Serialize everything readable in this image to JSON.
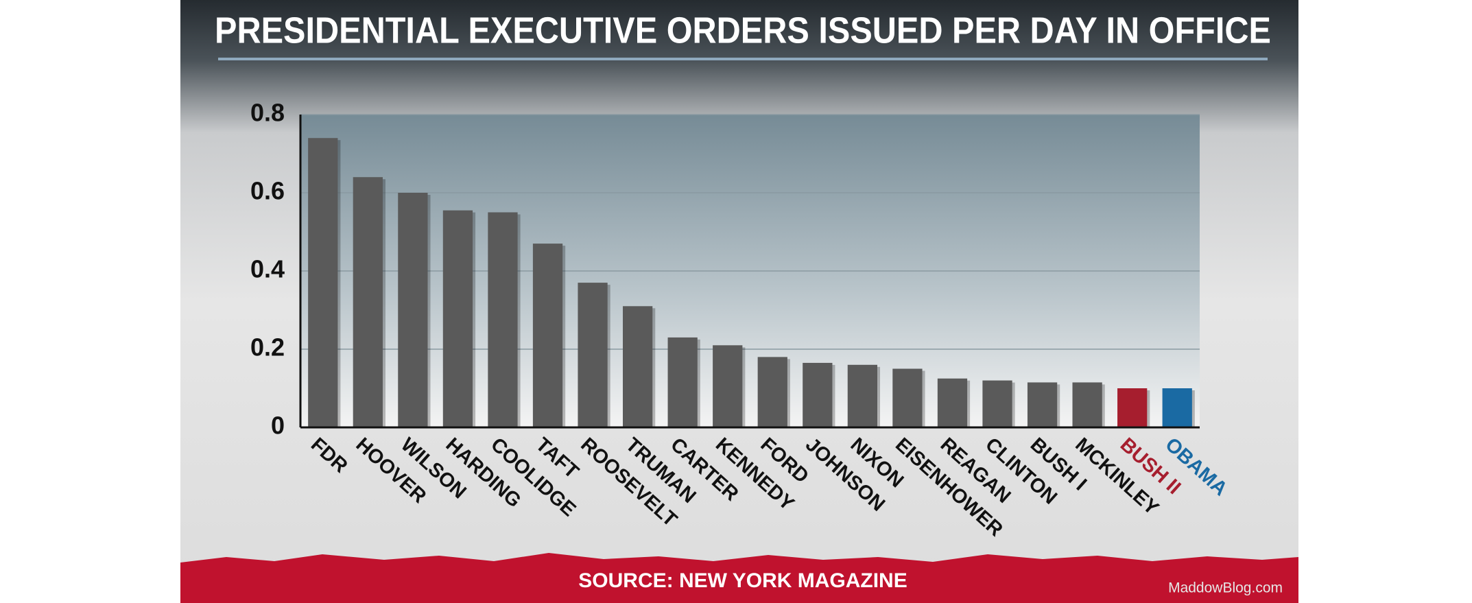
{
  "chart_data": {
    "type": "bar",
    "title": "PRESIDENTIAL EXECUTIVE ORDERS ISSUED PER DAY IN OFFICE",
    "source": "SOURCE: NEW YORK MAGAZINE",
    "watermark": "MaddowBlog.com",
    "categories": [
      "FDR",
      "HOOVER",
      "WILSON",
      "HARDING",
      "COOLIDGE",
      "TAFT",
      "ROOSEVELT",
      "TRUMAN",
      "CARTER",
      "KENNEDY",
      "FORD",
      "JOHNSON",
      "NIXON",
      "EISENHOWER",
      "REAGAN",
      "CLINTON",
      "BUSH I",
      "MCKINLEY",
      "BUSH II",
      "OBAMA"
    ],
    "values": [
      0.74,
      0.64,
      0.6,
      0.555,
      0.55,
      0.47,
      0.37,
      0.31,
      0.23,
      0.21,
      0.18,
      0.165,
      0.16,
      0.15,
      0.125,
      0.12,
      0.115,
      0.115,
      0.1,
      0.1
    ],
    "color": "#5a5a5a",
    "colors": [
      "#5a5a5a",
      "#5a5a5a",
      "#5a5a5a",
      "#5a5a5a",
      "#5a5a5a",
      "#5a5a5a",
      "#5a5a5a",
      "#5a5a5a",
      "#5a5a5a",
      "#5a5a5a",
      "#5a5a5a",
      "#5a5a5a",
      "#5a5a5a",
      "#5a5a5a",
      "#5a5a5a",
      "#5a5a5a",
      "#5a5a5a",
      "#5a5a5a",
      "#a61e2e",
      "#1a6aa3"
    ],
    "ylim": [
      0,
      0.8
    ],
    "yticks": [
      0,
      0.2,
      0.4,
      0.6,
      0.8
    ],
    "grid": true
  }
}
